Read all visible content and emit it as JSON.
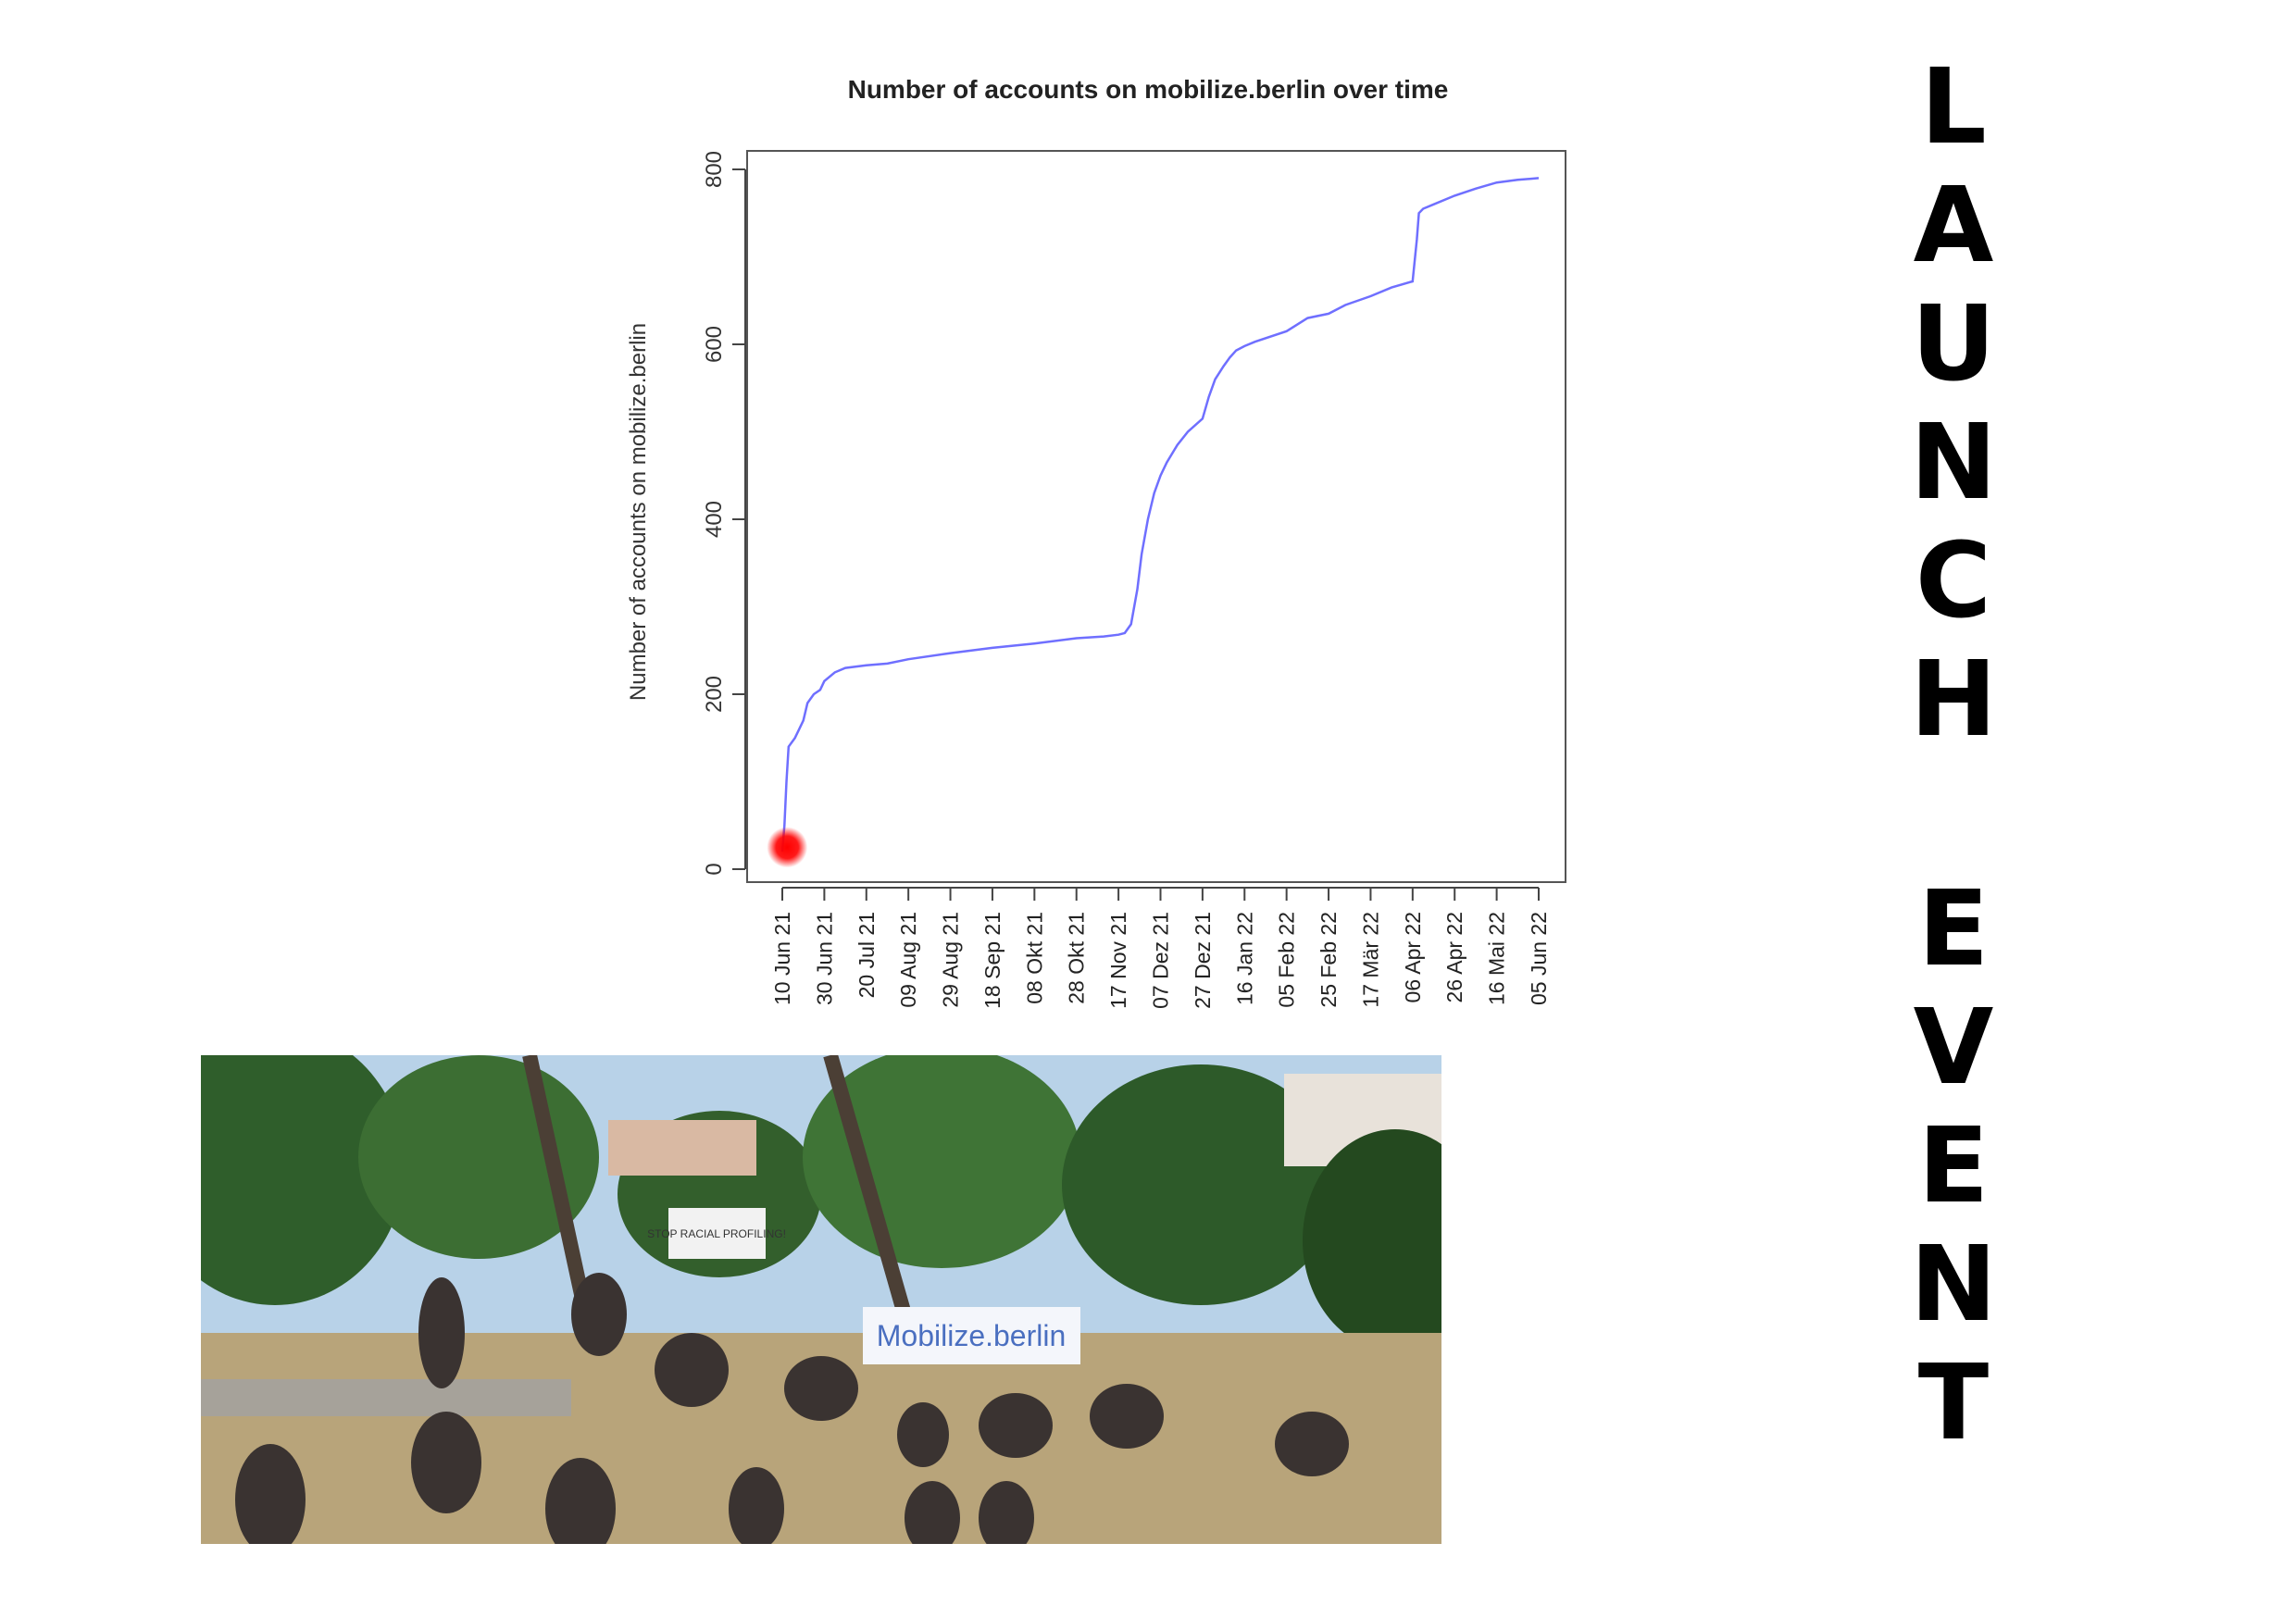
{
  "chart_data": {
    "type": "line",
    "title": "Number of accounts on mobilize.berlin over time",
    "xlabel": "",
    "ylabel": "Number of accounts on mobilize.berlin",
    "ylim": [
      0,
      800
    ],
    "yticks": [
      0,
      200,
      400,
      600,
      800
    ],
    "xticks": [
      "10 Jun 21",
      "30 Jun 21",
      "20 Jul 21",
      "09 Aug 21",
      "29 Aug 21",
      "18 Sep 21",
      "08 Okt 21",
      "28 Okt 21",
      "17 Nov 21",
      "07 Dez 21",
      "27 Dez 21",
      "16 Jan 22",
      "05 Feb 22",
      "25 Feb 22",
      "17 Mär 22",
      "06 Apr 22",
      "26 Apr 22",
      "16 Mai 22",
      "05 Jun 22"
    ],
    "grid": false,
    "series_color": "#6f6fff",
    "marker_color": "#ff0000",
    "marker": {
      "x": "11 Jun 21",
      "y": 25
    },
    "x_domain": [
      "2021-06-10",
      "2022-06-05"
    ],
    "x": [
      "2021-06-10",
      "2021-06-11",
      "2021-06-12",
      "2021-06-13",
      "2021-06-16",
      "2021-06-18",
      "2021-06-20",
      "2021-06-22",
      "2021-06-25",
      "2021-06-28",
      "2021-06-30",
      "2021-07-05",
      "2021-07-10",
      "2021-07-20",
      "2021-07-30",
      "2021-08-09",
      "2021-08-29",
      "2021-09-18",
      "2021-10-08",
      "2021-10-28",
      "2021-11-10",
      "2021-11-17",
      "2021-11-20",
      "2021-11-23",
      "2021-11-26",
      "2021-11-28",
      "2021-12-01",
      "2021-12-04",
      "2021-12-07",
      "2021-12-10",
      "2021-12-15",
      "2021-12-20",
      "2021-12-27",
      "2021-12-30",
      "2022-01-02",
      "2022-01-06",
      "2022-01-09",
      "2022-01-12",
      "2022-01-16",
      "2022-01-21",
      "2022-02-05",
      "2022-02-15",
      "2022-02-25",
      "2022-03-05",
      "2022-03-17",
      "2022-03-27",
      "2022-04-06",
      "2022-04-08",
      "2022-04-09",
      "2022-04-11",
      "2022-04-16",
      "2022-04-26",
      "2022-05-06",
      "2022-05-16",
      "2022-05-26",
      "2022-06-05"
    ],
    "y": [
      20,
      50,
      100,
      140,
      150,
      160,
      170,
      190,
      200,
      205,
      215,
      225,
      230,
      233,
      235,
      240,
      247,
      253,
      258,
      264,
      266,
      268,
      270,
      280,
      320,
      360,
      400,
      430,
      450,
      465,
      485,
      500,
      515,
      540,
      560,
      575,
      585,
      593,
      598,
      603,
      615,
      630,
      635,
      645,
      655,
      665,
      672,
      720,
      750,
      755,
      760,
      770,
      778,
      785,
      788,
      790
    ]
  },
  "side_title": {
    "lines": [
      "L",
      "A",
      "U",
      "N",
      "C",
      "H",
      "",
      "E",
      "V",
      "E",
      "N",
      "T"
    ]
  },
  "photo": {
    "banner_stop": "STOP RACIAL PROFILING!",
    "banner_mobilize": "Mobilize.berlin"
  }
}
